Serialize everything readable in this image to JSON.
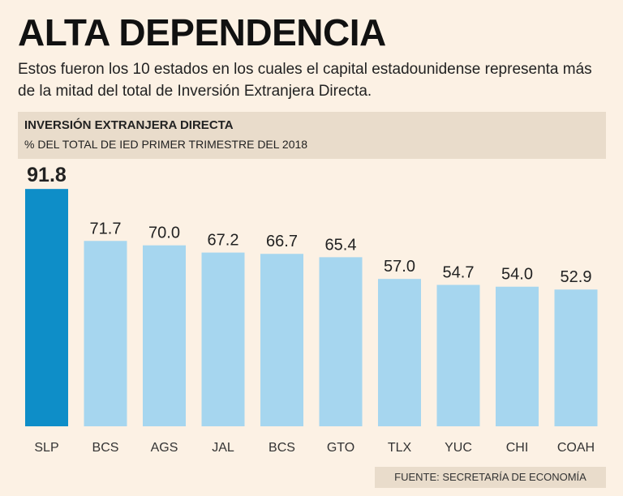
{
  "header": {
    "title": "ALTA DEPENDENCIA",
    "description": "Estos fueron los 10 estados en los cuales el capital estadounidense representa más de la mitad del total de Inversión Extranjera Directa."
  },
  "colors": {
    "highlight_bar": "#0e8ec8",
    "bar": "#a6d6ef",
    "background": "#fcf1e4",
    "band": "#e9dccb"
  },
  "chart_data": {
    "type": "bar",
    "title": "INVERSIÓN EXTRANJERA DIRECTA",
    "subtitle": "% DEL TOTAL DE IED PRIMER TRIMESTRE DEL 2018",
    "categories": [
      "SLP",
      "BCS",
      "AGS",
      "JAL",
      "BCS",
      "GTO",
      "TLX",
      "YUC",
      "CHI",
      "COAH"
    ],
    "values": [
      91.8,
      71.7,
      70.0,
      67.2,
      66.7,
      65.4,
      57.0,
      54.7,
      54.0,
      52.9
    ],
    "value_labels": [
      "91.8",
      "71.7",
      "70.0",
      "67.2",
      "66.7",
      "65.4",
      "57.0",
      "54.7",
      "54.0",
      "52.9"
    ],
    "highlight_index": 0,
    "ylim": [
      0,
      100
    ],
    "grid": false,
    "legend": "none"
  },
  "footer": {
    "source": "FUENTE: SECRETARÍA DE ECONOMÍA"
  }
}
